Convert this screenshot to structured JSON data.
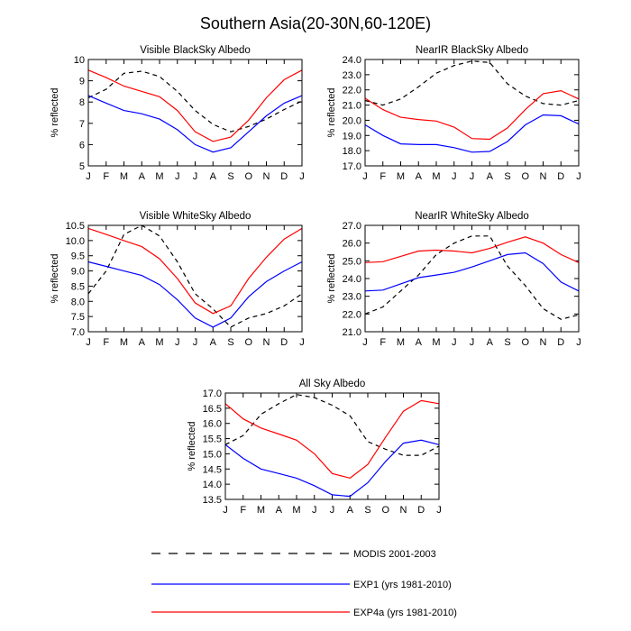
{
  "figure": {
    "title": "Southern Asia(20-30N,60-120E)"
  },
  "legend": [
    {
      "name": "MODIS 2001-2003",
      "color": "#000000",
      "dash": "dashed"
    },
    {
      "name": "EXP1 (yrs 1981-2010)",
      "color": "#0000ff",
      "dash": "solid"
    },
    {
      "name": "EXP4a (yrs 1981-2010)",
      "color": "#ff0000",
      "dash": "solid"
    }
  ],
  "chart_data": [
    {
      "type": "line",
      "title": "Visible BlackSky Albedo",
      "xlabel": "",
      "ylabel": "% reflected",
      "categories": [
        "J",
        "F",
        "M",
        "A",
        "M",
        "J",
        "J",
        "A",
        "S",
        "O",
        "N",
        "D",
        "J"
      ],
      "ylim": [
        5,
        10
      ],
      "yticks": [
        "5",
        "6",
        "7",
        "8",
        "9",
        "10"
      ],
      "grid": false,
      "series": [
        {
          "name": "MODIS 2001-2003",
          "color": "#000000",
          "dash": "dashed",
          "values": [
            8.2,
            8.6,
            9.35,
            9.45,
            9.2,
            8.5,
            7.6,
            6.95,
            6.6,
            6.85,
            7.2,
            7.65,
            8.05
          ]
        },
        {
          "name": "EXP1 (yrs 1981-2010)",
          "color": "#0000ff",
          "dash": "solid",
          "values": [
            8.3,
            7.95,
            7.6,
            7.45,
            7.2,
            6.7,
            6.0,
            5.65,
            5.85,
            6.6,
            7.35,
            7.95,
            8.3
          ]
        },
        {
          "name": "EXP4a (yrs 1981-2010)",
          "color": "#ff0000",
          "dash": "solid",
          "values": [
            9.5,
            9.15,
            8.75,
            8.5,
            8.25,
            7.6,
            6.6,
            6.15,
            6.35,
            7.15,
            8.2,
            9.05,
            9.5
          ]
        }
      ]
    },
    {
      "type": "line",
      "title": "NearIR BlackSky Albedo",
      "xlabel": "",
      "ylabel": "% reflected",
      "categories": [
        "J",
        "F",
        "M",
        "A",
        "M",
        "J",
        "J",
        "A",
        "S",
        "O",
        "N",
        "D",
        "J"
      ],
      "ylim": [
        17,
        24
      ],
      "yticks": [
        "17.0",
        "18.0",
        "19.0",
        "20.0",
        "21.0",
        "22.0",
        "23.0",
        "24.0"
      ],
      "grid": false,
      "series": [
        {
          "name": "MODIS 2001-2003",
          "color": "#000000",
          "dash": "dashed",
          "values": [
            21.3,
            21.0,
            21.4,
            22.2,
            23.1,
            23.6,
            23.9,
            23.8,
            22.4,
            21.6,
            21.1,
            21.0,
            21.3
          ]
        },
        {
          "name": "EXP1 (yrs 1981-2010)",
          "color": "#0000ff",
          "dash": "solid",
          "values": [
            19.7,
            19.0,
            18.45,
            18.4,
            18.4,
            18.2,
            17.9,
            17.95,
            18.6,
            19.7,
            20.35,
            20.3,
            19.75
          ]
        },
        {
          "name": "EXP4a (yrs 1981-2010)",
          "color": "#ff0000",
          "dash": "solid",
          "values": [
            21.45,
            20.7,
            20.2,
            20.05,
            19.95,
            19.55,
            18.8,
            18.75,
            19.5,
            20.7,
            21.75,
            21.95,
            21.4
          ]
        }
      ]
    },
    {
      "type": "line",
      "title": "Visible WhiteSky Albedo",
      "xlabel": "",
      "ylabel": "% reflected",
      "categories": [
        "J",
        "F",
        "M",
        "A",
        "M",
        "J",
        "J",
        "A",
        "S",
        "O",
        "N",
        "D",
        "J"
      ],
      "ylim": [
        7,
        10.5
      ],
      "yticks": [
        "7.0",
        "7.5",
        "8.0",
        "8.5",
        "9.0",
        "9.5",
        "10.0",
        "10.5"
      ],
      "grid": false,
      "series": [
        {
          "name": "MODIS 2001-2003",
          "color": "#000000",
          "dash": "dashed",
          "values": [
            8.25,
            9.0,
            10.2,
            10.5,
            10.15,
            9.3,
            8.25,
            7.75,
            7.15,
            7.45,
            7.6,
            7.85,
            8.25
          ]
        },
        {
          "name": "EXP1 (yrs 1981-2010)",
          "color": "#0000ff",
          "dash": "solid",
          "values": [
            9.3,
            9.15,
            9.0,
            8.85,
            8.55,
            8.05,
            7.45,
            7.15,
            7.45,
            8.15,
            8.65,
            9.0,
            9.3
          ]
        },
        {
          "name": "EXP4a (yrs 1981-2010)",
          "color": "#ff0000",
          "dash": "solid",
          "values": [
            10.4,
            10.2,
            10.0,
            9.8,
            9.4,
            8.75,
            7.95,
            7.6,
            7.85,
            8.75,
            9.45,
            10.05,
            10.4
          ]
        }
      ]
    },
    {
      "type": "line",
      "title": "NearIR WhiteSky Albedo",
      "xlabel": "",
      "ylabel": "% reflected",
      "categories": [
        "J",
        "F",
        "M",
        "A",
        "M",
        "J",
        "J",
        "A",
        "S",
        "O",
        "N",
        "D",
        "J"
      ],
      "ylim": [
        21,
        27
      ],
      "yticks": [
        "21.0",
        "22.0",
        "23.0",
        "24.0",
        "25.0",
        "26.0",
        "27.0"
      ],
      "grid": false,
      "series": [
        {
          "name": "MODIS 2001-2003",
          "color": "#000000",
          "dash": "dashed",
          "values": [
            22.0,
            22.4,
            23.3,
            24.2,
            25.35,
            26.0,
            26.4,
            26.4,
            24.7,
            23.6,
            22.3,
            21.7,
            21.95
          ]
        },
        {
          "name": "EXP1 (yrs 1981-2010)",
          "color": "#0000ff",
          "dash": "solid",
          "values": [
            23.3,
            23.35,
            23.7,
            24.05,
            24.2,
            24.35,
            24.65,
            25.0,
            25.35,
            25.45,
            24.85,
            23.8,
            23.3
          ]
        },
        {
          "name": "EXP4a (yrs 1981-2010)",
          "color": "#ff0000",
          "dash": "solid",
          "values": [
            24.9,
            24.95,
            25.25,
            25.55,
            25.6,
            25.55,
            25.45,
            25.7,
            26.05,
            26.35,
            26.0,
            25.35,
            24.9
          ]
        }
      ]
    },
    {
      "type": "line",
      "title": "All Sky Albedo",
      "xlabel": "",
      "ylabel": "% reflected",
      "categories": [
        "J",
        "F",
        "M",
        "A",
        "M",
        "J",
        "J",
        "A",
        "S",
        "O",
        "N",
        "D",
        "J"
      ],
      "ylim": [
        13.5,
        17
      ],
      "yticks": [
        "13.5",
        "14.0",
        "14.5",
        "15.0",
        "15.5",
        "16.0",
        "16.5",
        "17.0"
      ],
      "grid": false,
      "series": [
        {
          "name": "MODIS 2001-2003",
          "color": "#000000",
          "dash": "dashed",
          "values": [
            15.3,
            15.6,
            16.3,
            16.65,
            16.95,
            16.85,
            16.6,
            16.25,
            15.4,
            15.15,
            14.95,
            14.95,
            15.25
          ]
        },
        {
          "name": "EXP1 (yrs 1981-2010)",
          "color": "#0000ff",
          "dash": "solid",
          "values": [
            15.3,
            14.85,
            14.5,
            14.35,
            14.2,
            13.95,
            13.65,
            13.6,
            14.05,
            14.75,
            15.35,
            15.45,
            15.3
          ]
        },
        {
          "name": "EXP4a (yrs 1981-2010)",
          "color": "#ff0000",
          "dash": "solid",
          "values": [
            16.65,
            16.15,
            15.85,
            15.65,
            15.45,
            15.0,
            14.35,
            14.2,
            14.65,
            15.55,
            16.4,
            16.75,
            16.65
          ]
        }
      ]
    }
  ]
}
